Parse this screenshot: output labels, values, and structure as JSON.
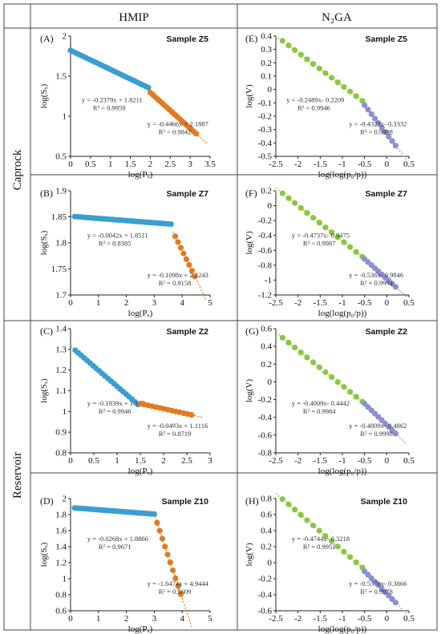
{
  "headers": {
    "columns": [
      "HMIP",
      "N₂GA"
    ],
    "rows": [
      "Caprock",
      "Reservoir"
    ]
  },
  "colors": {
    "hmip_low": "#3a9ed0",
    "hmip_high": "#e07b22",
    "n2ga_low": "#8cc63f",
    "n2ga_high": "#8c8fd0"
  },
  "chart_data": [
    {
      "type": "scatter",
      "panel": "(A)",
      "sample": "Sample Z5",
      "col": 0,
      "row": 0,
      "xlabel": "log(Pₓ)",
      "ylabel": "log(Sₓ)",
      "xlim": [
        0,
        3.5
      ],
      "ylim": [
        0.5,
        2.0
      ],
      "xticks": [
        0,
        0.5,
        1,
        1.5,
        2,
        2.5,
        3,
        3.5
      ],
      "yticks": [
        0.5,
        1,
        1.5,
        2
      ],
      "xtick_labels": [
        "0",
        "0.5",
        "1",
        "1.5",
        "2",
        "2.5",
        "3",
        "3.5"
      ],
      "ytick_labels": [
        "0.5",
        "1",
        "1.5",
        "2"
      ],
      "series": [
        {
          "color": "#3a9ed0",
          "x0": 0.0,
          "x1": 1.95,
          "n": 30,
          "m": -0.2379,
          "b": 1.8211,
          "equation": "y = -0.2379x + 1.8211",
          "r2": "R² = 0.9959"
        },
        {
          "color": "#e07b22",
          "x0": 2.0,
          "x1": 3.15,
          "n": 20,
          "m": -0.4466,
          "b": 2.1887,
          "equation": "y = -0.4466x + 2.1887",
          "r2": "R² = 0.9842"
        }
      ]
    },
    {
      "type": "scatter",
      "panel": "(B)",
      "sample": "Sample Z7",
      "col": 0,
      "row": 1,
      "xlabel": "log(Pₓ)",
      "ylabel": "log(Sₓ)",
      "xlim": [
        0,
        5
      ],
      "ylim": [
        1.7,
        1.9
      ],
      "xticks": [
        0,
        1,
        2,
        3,
        4,
        5
      ],
      "yticks": [
        1.7,
        1.75,
        1.8,
        1.85,
        1.9
      ],
      "xtick_labels": [
        "0",
        "1",
        "2",
        "3",
        "4",
        "5"
      ],
      "ytick_labels": [
        "1.7",
        "1.75",
        "1.8",
        "1.85",
        "1.9"
      ],
      "series": [
        {
          "color": "#3a9ed0",
          "x0": 0.15,
          "x1": 3.6,
          "n": 34,
          "m": -0.0042,
          "b": 1.8511,
          "equation": "y = -0.0042x + 1.8511",
          "r2": "R² = 0.8385"
        },
        {
          "color": "#e07b22",
          "x0": 3.75,
          "x1": 4.45,
          "n": 8,
          "m": -0.1098,
          "b": 2.2243,
          "equation": "y = -0.1098x + 2.2243",
          "r2": "R² = 0.9158"
        }
      ]
    },
    {
      "type": "scatter",
      "panel": "(C)",
      "sample": "Sample Z2",
      "col": 0,
      "row": 2,
      "xlabel": "log(Pₓ)",
      "ylabel": "log(Sₓ)",
      "xlim": [
        0,
        3
      ],
      "ylim": [
        0.8,
        1.4
      ],
      "xticks": [
        0,
        0.5,
        1,
        1.5,
        2,
        2.5,
        3
      ],
      "yticks": [
        0.8,
        0.9,
        1,
        1.1,
        1.2,
        1.3,
        1.4
      ],
      "xtick_labels": [
        "0",
        "0.5",
        "1",
        "1.5",
        "2",
        "2.5",
        "3"
      ],
      "ytick_labels": [
        "0.8",
        "0.9",
        "1",
        "1.1",
        "1.2",
        "1.3",
        "1.4"
      ],
      "series": [
        {
          "color": "#3a9ed0",
          "x0": 0.1,
          "x1": 1.45,
          "n": 22,
          "m": -0.1939,
          "b": 1.315,
          "equation": "y = -0.1939x + 1.315",
          "r2": "R² = 0.9946"
        },
        {
          "color": "#e07b22",
          "x0": 1.5,
          "x1": 2.6,
          "n": 14,
          "m": -0.0493,
          "b": 1.1116,
          "equation": "y = -0.0493x + 1.1116",
          "r2": "R² = 0.8719"
        }
      ]
    },
    {
      "type": "scatter",
      "panel": "(D)",
      "sample": "Sample Z10",
      "col": 0,
      "row": 3,
      "xlabel": "log(Pₓ)",
      "ylabel": "log(Sₓ)",
      "xlim": [
        0,
        5
      ],
      "ylim": [
        0.6,
        2.0
      ],
      "xticks": [
        0,
        1,
        2,
        3,
        4,
        5
      ],
      "yticks": [
        0.6,
        0.8,
        1,
        1.2,
        1.4,
        1.6,
        1.8,
        2
      ],
      "xtick_labels": [
        "0",
        "1",
        "2",
        "3",
        "4",
        "5"
      ],
      "ytick_labels": [
        "0.6",
        "0.8",
        "1",
        "1.2",
        "1.4",
        "1.6",
        "1.8",
        "2"
      ],
      "series": [
        {
          "color": "#3a9ed0",
          "x0": 0.15,
          "x1": 3.0,
          "n": 28,
          "m": -0.0268,
          "b": 1.8866,
          "equation": "y = -0.0268x + 1.8866",
          "r2": "R² = 0.9671"
        },
        {
          "color": "#e07b22",
          "x0": 3.1,
          "x1": 3.95,
          "n": 10,
          "m": -1.0474,
          "b": 4.9444,
          "equation": "y = -1.0474x + 4.9444",
          "r2": "R² = 0.9609"
        }
      ]
    },
    {
      "type": "scatter",
      "panel": "(E)",
      "sample": "Sample Z5",
      "col": 1,
      "row": 0,
      "xlabel": "log(log(p₀/p))",
      "ylabel": "log(V)",
      "xlim": [
        -2.5,
        0.5
      ],
      "ylim": [
        -0.5,
        0.4
      ],
      "xticks": [
        -2.5,
        -2,
        -1.5,
        -1,
        -0.5,
        0,
        0.5
      ],
      "yticks": [
        -0.5,
        -0.4,
        -0.3,
        -0.2,
        -0.1,
        0,
        0.1,
        0.2,
        0.3,
        0.4
      ],
      "xtick_labels": [
        "-2.5",
        "-2",
        "-1.5",
        "-1",
        "-0.5",
        "0",
        "0.5"
      ],
      "ytick_labels": [
        "-0.5",
        "-0.4",
        "-0.3",
        "-0.2",
        "-0.1",
        "0",
        "0.1",
        "0.2",
        "0.3",
        "0.4"
      ],
      "series": [
        {
          "color": "#8cc63f",
          "x0": -2.35,
          "x1": -0.55,
          "n": 14,
          "m": -0.2489,
          "b": -0.2209,
          "equation": "y = -0.2489x- 0.2209",
          "r2": "R² = 0.9946"
        },
        {
          "color": "#8c8fd0",
          "x0": -0.5,
          "x1": 0.2,
          "n": 10,
          "m": -0.4323,
          "b": -0.3332,
          "equation": "y = -0.4323x- 0.3332",
          "r2": "R² = 0.9998"
        }
      ]
    },
    {
      "type": "scatter",
      "panel": "(F)",
      "sample": "Sample Z7",
      "col": 1,
      "row": 1,
      "xlabel": "log(log(p₀/p))",
      "ylabel": "log(V)",
      "xlim": [
        -2.5,
        0.5
      ],
      "ylim": [
        -1.2,
        0.2
      ],
      "xticks": [
        -2.5,
        -2,
        -1.5,
        -1,
        -0.5,
        0,
        0.5
      ],
      "yticks": [
        -1.2,
        -1,
        -0.8,
        -0.6,
        -0.4,
        -0.2,
        0,
        0.2
      ],
      "xtick_labels": [
        "-2.5",
        "-2",
        "-1.5",
        "-1",
        "-0.5",
        "0",
        "0.5"
      ],
      "ytick_labels": [
        "-1.2",
        "-1",
        "-0.8",
        "-0.6",
        "-0.4",
        "-0.2",
        "0",
        "0.2"
      ],
      "series": [
        {
          "color": "#8cc63f",
          "x0": -2.35,
          "x1": -0.55,
          "n": 14,
          "m": -0.4737,
          "b": -0.9475,
          "equation": "y = -0.4737x- 0.9475",
          "r2": "R² = 0.9987"
        },
        {
          "color": "#8c8fd0",
          "x0": -0.5,
          "x1": 0.2,
          "n": 10,
          "m": -0.536,
          "b": -0.9846,
          "equation": "y = -0.536x- 0.9846",
          "r2": "R² = 0.9994"
        }
      ]
    },
    {
      "type": "scatter",
      "panel": "(G)",
      "sample": "Sample Z2",
      "col": 1,
      "row": 2,
      "xlabel": "log(log(p₀/p))",
      "ylabel": "log(V)",
      "xlim": [
        -2.5,
        0.5
      ],
      "ylim": [
        -0.8,
        0.6
      ],
      "xticks": [
        -2.5,
        -2,
        -1.5,
        -1,
        -0.5,
        0,
        0.5
      ],
      "yticks": [
        -0.8,
        -0.6,
        -0.4,
        -0.2,
        0,
        0.2,
        0.4,
        0.6
      ],
      "xtick_labels": [
        "-2.5",
        "-2",
        "-1.5",
        "-1",
        "-0.5",
        "0",
        "0.5"
      ],
      "ytick_labels": [
        "-0.8",
        "-0.6",
        "-0.4",
        "-0.2",
        "0",
        "0.2",
        "0.4",
        "0.6"
      ],
      "series": [
        {
          "color": "#8cc63f",
          "x0": -2.35,
          "x1": -0.55,
          "n": 14,
          "m": -0.4009,
          "b": -0.4442,
          "equation": "y = -0.4009x- 0.4442",
          "r2": "R² = 0.9984"
        },
        {
          "color": "#8c8fd0",
          "x0": -0.5,
          "x1": 0.2,
          "n": 10,
          "m": -0.4809,
          "b": -0.4862,
          "equation": "y = -0.4809x- 0.4862",
          "r2": "R² = 0.9998"
        }
      ]
    },
    {
      "type": "scatter",
      "panel": "(H)",
      "sample": "Sample Z10",
      "col": 1,
      "row": 3,
      "xlabel": "log(log(p₀/p))",
      "ylabel": "log(V)",
      "xlim": [
        -2.5,
        0.5
      ],
      "ylim": [
        -0.6,
        0.8
      ],
      "xticks": [
        -2.5,
        -2,
        -1.5,
        -1,
        -0.5,
        0,
        0.5
      ],
      "yticks": [
        -0.6,
        -0.4,
        -0.2,
        0,
        0.2,
        0.4,
        0.6,
        0.8
      ],
      "xtick_labels": [
        "-2.5",
        "-2",
        "-1.5",
        "-1",
        "-0.5",
        "0",
        "0.5"
      ],
      "ytick_labels": [
        "-0.6",
        "-0.4",
        "-0.2",
        "0",
        "0.2",
        "0.4",
        "0.6",
        "0.8"
      ],
      "series": [
        {
          "color": "#8cc63f",
          "x0": -2.35,
          "x1": -0.55,
          "n": 14,
          "m": -0.4744,
          "b": -0.3218,
          "equation": "y = -0.4744x- 0.3218",
          "r2": "R² = 0.9951"
        },
        {
          "color": "#8c8fd0",
          "x0": -0.5,
          "x1": 0.2,
          "n": 10,
          "m": -0.5578,
          "b": -0.3866,
          "equation": "y = -0.5578x- 0.3866",
          "r2": "R² = 0.9978"
        }
      ]
    }
  ]
}
